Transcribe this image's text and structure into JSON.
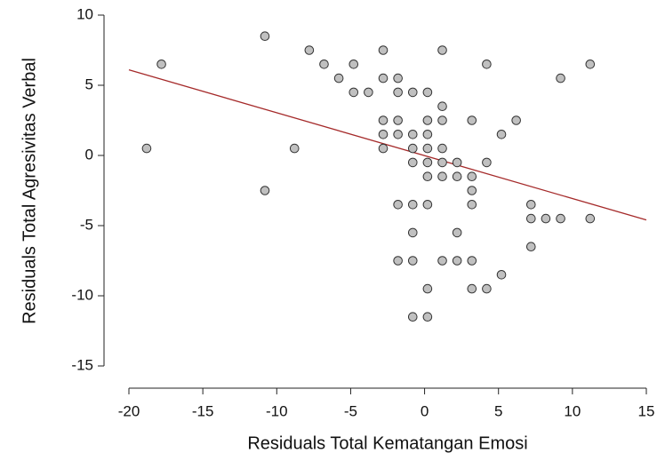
{
  "chart_data": {
    "type": "scatter",
    "xlabel": "Residuals Total Kematangan Emosi",
    "ylabel": "Residuals Total Agresivitas Verbal",
    "xlim": [
      -20,
      15
    ],
    "ylim": [
      -15,
      10
    ],
    "xticks": [
      -20,
      -15,
      -10,
      -5,
      0,
      5,
      10,
      15
    ],
    "yticks": [
      -15,
      -10,
      -5,
      0,
      5,
      10
    ],
    "series": [
      {
        "color": "#c0c0c0",
        "x": [
          -17.8,
          -18.8,
          -10.8,
          -10.8,
          -8.8,
          -7.8,
          -6.8,
          -5.8,
          -4.8,
          -4.8,
          -3.8,
          -2.8,
          -2.8,
          -2.8,
          -2.8,
          -2.8,
          -1.8,
          -1.8,
          -1.8,
          -1.8,
          -1.8,
          -1.8,
          -0.8,
          -0.8,
          -0.8,
          -0.8,
          -0.8,
          -0.8,
          -0.8,
          -0.8,
          0.2,
          0.2,
          0.2,
          0.2,
          0.2,
          0.2,
          0.2,
          0.2,
          0.2,
          1.2,
          1.2,
          1.2,
          1.2,
          1.2,
          1.2,
          1.2,
          2.2,
          2.2,
          2.2,
          2.2,
          3.2,
          3.2,
          3.2,
          3.2,
          3.2,
          3.2,
          4.2,
          4.2,
          4.2,
          5.2,
          5.2,
          6.2,
          7.2,
          7.2,
          7.2,
          8.2,
          9.2,
          9.2,
          11.2,
          11.2
        ],
        "values": [
          6.5,
          0.5,
          8.5,
          -2.5,
          0.5,
          7.5,
          6.5,
          5.5,
          6.5,
          4.5,
          4.5,
          7.5,
          5.5,
          2.5,
          1.5,
          0.5,
          5.5,
          4.5,
          2.5,
          1.5,
          -3.5,
          -7.5,
          4.5,
          1.5,
          0.5,
          -0.5,
          -3.5,
          -5.5,
          -7.5,
          -11.5,
          4.5,
          2.5,
          1.5,
          0.5,
          -0.5,
          -1.5,
          -3.5,
          -9.5,
          -11.5,
          7.5,
          3.5,
          2.5,
          0.5,
          -0.5,
          -1.5,
          -7.5,
          -0.5,
          -1.5,
          -5.5,
          -7.5,
          2.5,
          -1.5,
          -2.5,
          -3.5,
          -7.5,
          -9.5,
          6.5,
          -0.5,
          -9.5,
          1.5,
          -8.5,
          2.5,
          -3.5,
          -4.5,
          -6.5,
          -4.5,
          5.5,
          -4.5,
          6.5,
          -4.5
        ]
      }
    ],
    "trend_line": {
      "x": [
        -20,
        15
      ],
      "values": [
        6.1,
        -4.6
      ],
      "color": "#a52a2a"
    }
  }
}
